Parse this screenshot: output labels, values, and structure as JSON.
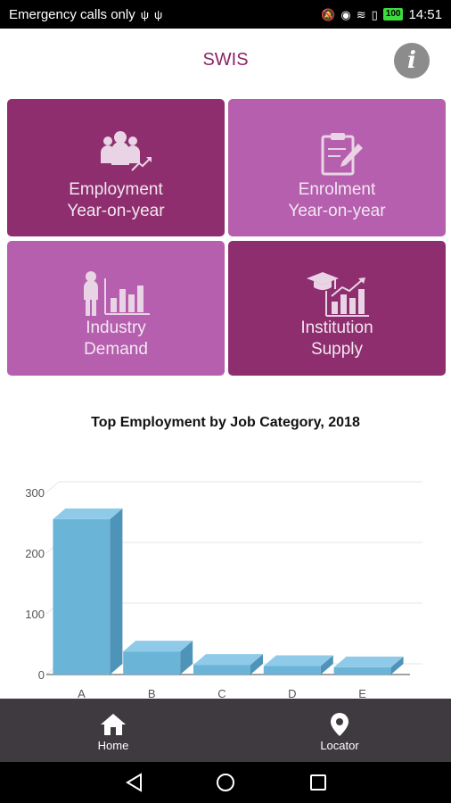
{
  "status_bar": {
    "carrier_text": "Emergency calls only",
    "battery_level": "100",
    "time": "14:51"
  },
  "header": {
    "title": "SWIS",
    "info_icon": "info-icon"
  },
  "tiles": [
    {
      "line1": "Employment",
      "line2": "Year-on-year",
      "icon": "people-growth-icon",
      "color": "#8e2e6e"
    },
    {
      "line1": "Enrolment",
      "line2": "Year-on-year",
      "icon": "clipboard-pencil-icon",
      "color": "#b55fae"
    },
    {
      "line1": "Industry",
      "line2": "Demand",
      "icon": "worker-bar-chart-icon",
      "color": "#b55fae"
    },
    {
      "line1": "Institution",
      "line2": "Supply",
      "icon": "graduation-bar-chart-icon",
      "color": "#8e2e6e"
    }
  ],
  "chart_data": {
    "type": "bar",
    "title": "Top Employment by Job Category, 2018",
    "categories": [
      "A",
      "B",
      "C",
      "D",
      "E"
    ],
    "values": [
      256,
      38,
      16,
      14,
      12
    ],
    "ylim": [
      0,
      300
    ],
    "yticks": [
      0,
      100,
      200,
      300
    ],
    "grid": true,
    "color": "#6ab4d8"
  },
  "bottom_nav": {
    "items": [
      {
        "label": "Home",
        "icon": "home-icon"
      },
      {
        "label": "Locator",
        "icon": "location-pin-icon"
      }
    ]
  },
  "system_nav": {
    "icons": [
      "back-icon",
      "home-circle-icon",
      "recents-icon"
    ]
  }
}
